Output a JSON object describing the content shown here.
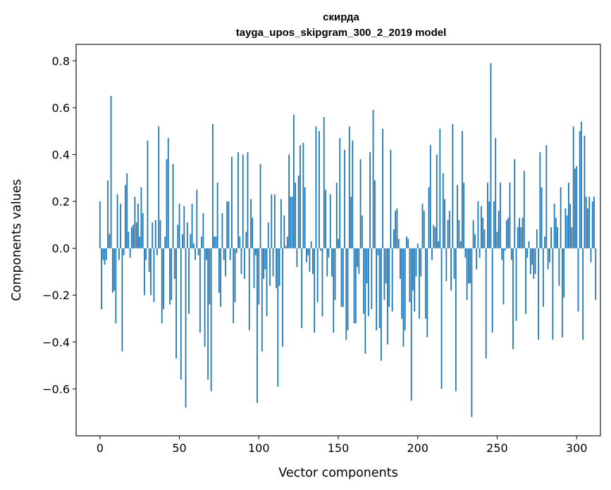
{
  "chart_data": {
    "type": "bar",
    "title": "скирда",
    "subtitle": "tayga_upos_skipgram_300_2_2019 model",
    "xlabel": "Vector components",
    "ylabel": "Components values",
    "xlim": [
      -15,
      315
    ],
    "ylim": [
      -0.8,
      0.87
    ],
    "x_ticks": [
      0,
      50,
      100,
      150,
      200,
      250,
      300
    ],
    "x_tick_labels": [
      "0",
      "50",
      "100",
      "150",
      "200",
      "250",
      "300"
    ],
    "y_ticks": [
      -0.6,
      -0.4,
      -0.2,
      0.0,
      0.2,
      0.4,
      0.6,
      0.8
    ],
    "y_tick_labels": [
      "−0.6",
      "−0.4",
      "−0.2",
      "0.0",
      "0.2",
      "0.4",
      "0.6",
      "0.8"
    ],
    "bar_color": "#1f77b4",
    "grid": false,
    "values": [
      0.2,
      -0.26,
      -0.05,
      -0.07,
      -0.05,
      0.29,
      0.06,
      0.65,
      -0.19,
      -0.18,
      -0.32,
      0.23,
      -0.05,
      0.19,
      -0.44,
      -0.03,
      0.27,
      0.32,
      0.07,
      -0.04,
      0.09,
      0.1,
      0.22,
      0.11,
      0.19,
      0.05,
      0.26,
      0.15,
      -0.2,
      -0.05,
      0.46,
      -0.1,
      -0.2,
      0.11,
      -0.23,
      0.12,
      -0.03,
      0.52,
      0.12,
      -0.32,
      -0.26,
      0.05,
      0.38,
      0.47,
      -0.24,
      -0.22,
      0.36,
      -0.13,
      -0.47,
      0.1,
      0.19,
      -0.56,
      0.06,
      0.18,
      -0.68,
      0.11,
      -0.28,
      0.06,
      0.19,
      0.02,
      -0.05,
      0.25,
      -0.03,
      -0.36,
      0.05,
      0.15,
      -0.42,
      -0.05,
      -0.56,
      -0.24,
      -0.61,
      0.53,
      0.05,
      0.05,
      0.28,
      -0.19,
      -0.25,
      0.15,
      -0.05,
      -0.12,
      0.2,
      0.2,
      -0.05,
      0.39,
      -0.32,
      -0.23,
      -0.02,
      0.41,
      0.05,
      -0.11,
      0.4,
      -0.13,
      0.07,
      0.41,
      -0.35,
      0.21,
      0.13,
      -0.17,
      -0.03,
      -0.66,
      -0.24,
      0.36,
      -0.44,
      -0.13,
      -0.09,
      -0.29,
      0.11,
      -0.16,
      0.23,
      -0.12,
      0.23,
      -0.17,
      -0.59,
      -0.16,
      0.21,
      -0.42,
      0.14,
      0.01,
      0.05,
      0.4,
      0.22,
      0.22,
      0.57,
      0.28,
      -0.08,
      0.31,
      0.44,
      -0.34,
      0.45,
      0.26,
      -0.06,
      -0.03,
      -0.1,
      0.03,
      -0.11,
      -0.36,
      0.52,
      -0.23,
      0.5,
      -0.01,
      -0.29,
      0.56,
      0.25,
      -0.12,
      -0.04,
      0.23,
      -0.12,
      -0.36,
      -0.22,
      0.28,
      0.04,
      0.47,
      -0.25,
      -0.25,
      0.42,
      -0.39,
      -0.35,
      0.52,
      0.22,
      0.46,
      -0.32,
      -0.32,
      -0.08,
      -0.11,
      0.38,
      0.14,
      -0.28,
      -0.45,
      -0.15,
      -0.29,
      0.41,
      -0.26,
      0.59,
      0.29,
      -0.35,
      -0.03,
      -0.34,
      -0.48,
      0.51,
      -0.22,
      -0.15,
      -0.41,
      -0.25,
      0.42,
      -0.27,
      0.08,
      0.16,
      0.17,
      0.04,
      -0.13,
      -0.3,
      -0.42,
      -0.35,
      0.05,
      0.04,
      -0.23,
      -0.65,
      -0.18,
      -0.27,
      -0.12,
      0.02,
      -0.3,
      -0.12,
      0.19,
      0.16,
      -0.3,
      -0.38,
      0.26,
      0.44,
      -0.05,
      0.1,
      0.09,
      0.4,
      0.03,
      0.51,
      -0.6,
      0.32,
      0.21,
      -0.14,
      0.12,
      0.16,
      -0.18,
      0.53,
      -0.13,
      -0.61,
      0.27,
      0.12,
      0.03,
      0.5,
      0.28,
      -0.04,
      -0.22,
      -0.15,
      -0.15,
      -0.72,
      0.12,
      0.06,
      -0.09,
      0.2,
      -0.04,
      0.18,
      0.13,
      0.08,
      -0.47,
      0.28,
      0.2,
      0.79,
      -0.36,
      0.2,
      0.47,
      0.07,
      0.16,
      0.28,
      -0.05,
      -0.24,
      -0.01,
      0.12,
      0.13,
      0.28,
      -0.05,
      -0.43,
      0.38,
      -0.31,
      0.09,
      0.13,
      0.09,
      0.13,
      0.33,
      -0.28,
      -0.04,
      0.03,
      -0.11,
      -0.07,
      -0.13,
      -0.11,
      0.08,
      -0.39,
      0.41,
      0.26,
      -0.25,
      0.05,
      0.44,
      -0.09,
      -0.06,
      0.09,
      -0.39,
      0.19,
      0.13,
      0.09,
      -0.16,
      0.26,
      -0.38,
      -0.21,
      0.17,
      0.14,
      0.28,
      0.19,
      0.09,
      0.52,
      0.34,
      0.35,
      -0.27,
      0.5,
      0.54,
      -0.39,
      0.48,
      0.22,
      0.17,
      0.22,
      -0.06,
      0.2,
      0.22,
      -0.22
    ]
  }
}
